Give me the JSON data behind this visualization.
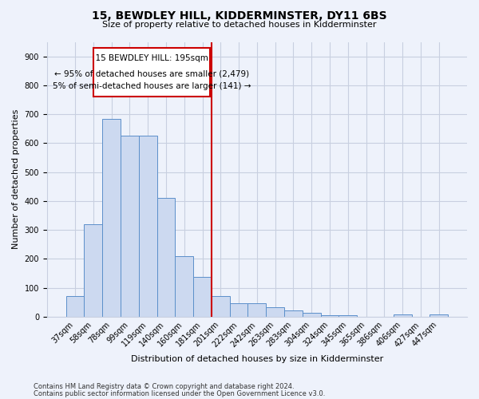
{
  "title": "15, BEWDLEY HILL, KIDDERMINSTER, DY11 6BS",
  "subtitle": "Size of property relative to detached houses in Kidderminster",
  "xlabel": "Distribution of detached houses by size in Kidderminster",
  "ylabel": "Number of detached properties",
  "footnote1": "Contains HM Land Registry data © Crown copyright and database right 2024.",
  "footnote2": "Contains public sector information licensed under the Open Government Licence v3.0.",
  "categories": [
    "37sqm",
    "58sqm",
    "78sqm",
    "99sqm",
    "119sqm",
    "140sqm",
    "160sqm",
    "181sqm",
    "201sqm",
    "222sqm",
    "242sqm",
    "263sqm",
    "283sqm",
    "304sqm",
    "324sqm",
    "345sqm",
    "365sqm",
    "386sqm",
    "406sqm",
    "427sqm",
    "447sqm"
  ],
  "values": [
    70,
    320,
    685,
    625,
    625,
    410,
    210,
    138,
    70,
    45,
    45,
    32,
    22,
    12,
    5,
    5,
    0,
    0,
    8,
    0,
    8
  ],
  "bar_color": "#ccd9f0",
  "bar_edge_color": "#5b8fca",
  "vline_color": "#cc0000",
  "vline_pos": 7.5,
  "ann_line1": "  15 BEWDLEY HILL: 195sqm  ",
  "ann_line2": "← 95% of detached houses are smaller (2,479)",
  "ann_line3": "5% of semi-detached houses are larger (141) →",
  "ann_box_color": "#cc0000",
  "ylim": [
    0,
    950
  ],
  "yticks": [
    0,
    100,
    200,
    300,
    400,
    500,
    600,
    700,
    800,
    900
  ],
  "bg_color": "#eef2fb",
  "grid_color": "#c8cfe0",
  "title_fontsize": 10,
  "subtitle_fontsize": 8,
  "ylabel_fontsize": 8,
  "xlabel_fontsize": 8,
  "tick_fontsize": 7,
  "footnote_fontsize": 6
}
